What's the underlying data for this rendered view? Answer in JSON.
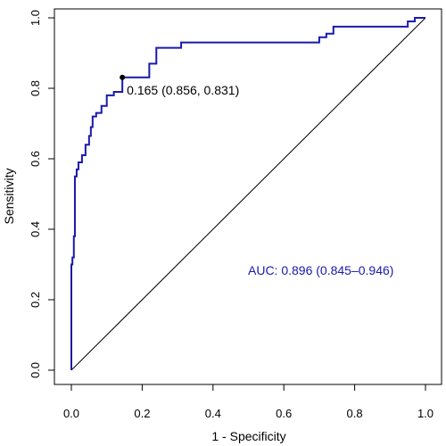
{
  "chart_data": {
    "type": "line",
    "xlabel": "1 - Specificity",
    "ylabel": "Sensitivity",
    "xlim": [
      0,
      1
    ],
    "ylim": [
      0,
      1
    ],
    "xticks": [
      "0.0",
      "0.2",
      "0.4",
      "0.6",
      "0.8",
      "1.0"
    ],
    "yticks": [
      "0.0",
      "0.2",
      "0.4",
      "0.6",
      "0.8",
      "1.0"
    ],
    "grid": false,
    "series": [
      {
        "color": "#1a1aaa",
        "x": [
          0,
          0,
          0.003,
          0.003,
          0.007,
          0.007,
          0.01,
          0.01,
          0.015,
          0.015,
          0.02,
          0.02,
          0.03,
          0.03,
          0.04,
          0.04,
          0.05,
          0.05,
          0.055,
          0.055,
          0.06,
          0.06,
          0.07,
          0.07,
          0.085,
          0.085,
          0.1,
          0.1,
          0.12,
          0.12,
          0.144,
          0.144,
          0.22,
          0.22,
          0.24,
          0.24,
          0.31,
          0.31,
          0.7,
          0.7,
          0.72,
          0.72,
          0.74,
          0.74,
          0.95,
          0.95,
          0.97,
          0.97,
          1.0,
          1.0
        ],
        "y": [
          0,
          0.3,
          0.3,
          0.32,
          0.32,
          0.38,
          0.38,
          0.55,
          0.55,
          0.57,
          0.57,
          0.59,
          0.59,
          0.61,
          0.61,
          0.64,
          0.64,
          0.665,
          0.665,
          0.69,
          0.69,
          0.72,
          0.72,
          0.73,
          0.73,
          0.75,
          0.75,
          0.78,
          0.78,
          0.79,
          0.79,
          0.831,
          0.831,
          0.87,
          0.87,
          0.915,
          0.915,
          0.93,
          0.93,
          0.945,
          0.945,
          0.955,
          0.955,
          0.975,
          0.975,
          0.99,
          0.99,
          1.0,
          1.0,
          1.0
        ]
      }
    ],
    "reference_line": {
      "x": [
        0,
        1
      ],
      "y": [
        0,
        1
      ],
      "color": "#000000"
    },
    "threshold_point": {
      "x": 0.144,
      "y": 0.831,
      "label": "0.165 (0.856, 0.831)"
    },
    "auc_label": {
      "text": "AUC: 0.896 (0.845–0.946)",
      "color": "#1a1aaa"
    }
  }
}
